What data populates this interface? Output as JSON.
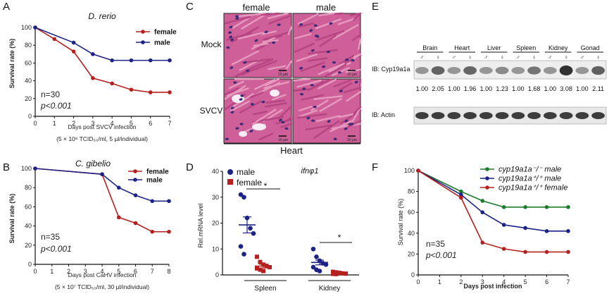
{
  "colors": {
    "red": "#b5201f",
    "blue": "#1c2286",
    "green": "#1e7b2c",
    "he": "#d7639d"
  },
  "panelA": {
    "letter": "A",
    "title": "D. rerio",
    "ylabel": "Survival rate (%)",
    "xlabel": "Days post SVCV infection",
    "dose": "(5 × 10⁸ TCID₅₀/ml, 5 µl/individual)",
    "n": "n=30",
    "p": "p<0.001",
    "chart_data": {
      "type": "line",
      "x": [
        0,
        1,
        2,
        3,
        4,
        5,
        6,
        7
      ],
      "xlim": [
        0,
        7
      ],
      "ylim": [
        0,
        100
      ],
      "yticks": [
        0,
        20,
        40,
        60,
        80,
        100
      ],
      "series": [
        {
          "name": "female",
          "color": "#b5201f",
          "values": [
            100,
            87,
            73,
            43,
            37,
            30,
            27,
            27
          ]
        },
        {
          "name": "male",
          "color": "#1c2286",
          "values": [
            100,
            null,
            83,
            70,
            63,
            63,
            63,
            63
          ]
        }
      ]
    }
  },
  "panelB": {
    "letter": "B",
    "title": "C. gibelio",
    "ylabel": "Survival rate (%)",
    "xlabel": "Days post CaHV infection",
    "dose": "(5 × 10⁷ TCID₅₀/ml, 30 µl/individual)",
    "n": "n=35",
    "p": "p<0.001",
    "chart_data": {
      "type": "line",
      "x": [
        0,
        1,
        2,
        3,
        4,
        5,
        6,
        7,
        8
      ],
      "xlim": [
        0,
        8
      ],
      "ylim": [
        0,
        100
      ],
      "yticks": [
        0,
        20,
        40,
        60,
        80,
        100
      ],
      "series": [
        {
          "name": "female",
          "color": "#b5201f",
          "values": [
            100,
            null,
            null,
            null,
            94,
            49,
            43,
            34,
            34
          ]
        },
        {
          "name": "male",
          "color": "#1c2286",
          "values": [
            100,
            null,
            null,
            null,
            94,
            80,
            72,
            66,
            66
          ]
        }
      ]
    }
  },
  "panelC": {
    "letter": "C",
    "col_female": "female",
    "col_male": "male",
    "row_mock": "Mock",
    "row_svcv": "SVCV",
    "bottom": "Heart",
    "scale": "10 µm"
  },
  "panelD": {
    "letter": "D",
    "gene": "ifnφ1",
    "ylabel": "Rel.mRNA level",
    "legend_male": "male",
    "legend_female": "female",
    "star": "*",
    "chart_data": {
      "type": "scatter",
      "categories": [
        "Spleen",
        "Kidney"
      ],
      "ylim": [
        0,
        40
      ],
      "yticks": [
        0,
        10,
        20,
        30,
        40
      ],
      "series": [
        {
          "name": "male",
          "color": "#1c2286",
          "mean": [
            19.3,
            4.8
          ],
          "points": [
            [
              31,
              30,
              22,
              18,
              16,
              11,
              8
            ],
            [
              10,
              7,
              5.5,
              4.5,
              4,
              3,
              2,
              1.5
            ]
          ]
        },
        {
          "name": "female",
          "color": "#b5201f",
          "mean": [
            3.4,
            0.6
          ],
          "points": [
            [
              7,
              5,
              4,
              3.5,
              3,
              2.5,
              2,
              1.5
            ],
            [
              1.2,
              1,
              0.8,
              0.6,
              0.5,
              0.4,
              0.3
            ]
          ]
        }
      ]
    }
  },
  "panelE": {
    "letter": "E",
    "tissues": [
      "Brain",
      "Heart",
      "Liver",
      "Spleen",
      "Kidney",
      "Gonad"
    ],
    "sex_m": "♂",
    "sex_f": "♀",
    "ib1": "IB: Cyp19a1a",
    "ib2": "IB: Actin",
    "ratios": [
      "1.00",
      "2.05",
      "1.00",
      "1.96",
      "1.00",
      "1.23",
      "1.00",
      "1.68",
      "1.00",
      "3.08",
      "1.00",
      "2.11"
    ]
  },
  "panelF": {
    "letter": "F",
    "ylabel": "Survival rate (%)",
    "xlabel": "Days post infection",
    "n": "n=35",
    "p": "p<0.001",
    "chart_data": {
      "type": "line",
      "x": [
        0,
        1,
        2,
        3,
        4,
        5,
        6,
        7
      ],
      "xlim": [
        0,
        7
      ],
      "ylim": [
        0,
        100
      ],
      "yticks": [
        0,
        20,
        40,
        60,
        80,
        100
      ],
      "series": [
        {
          "name": "cyp19a1a⁻/⁻ male",
          "color": "#1e7b2c",
          "values": [
            100,
            null,
            80,
            71,
            65,
            65,
            65,
            65
          ]
        },
        {
          "name": "cyp19a1a⁺/⁺ male",
          "color": "#1c2286",
          "values": [
            100,
            null,
            77,
            60,
            48,
            45,
            42,
            42
          ]
        },
        {
          "name": "cyp19a1a⁺/⁺ female",
          "color": "#b5201f",
          "values": [
            100,
            null,
            74,
            31,
            25,
            22,
            22,
            22
          ]
        }
      ]
    }
  }
}
